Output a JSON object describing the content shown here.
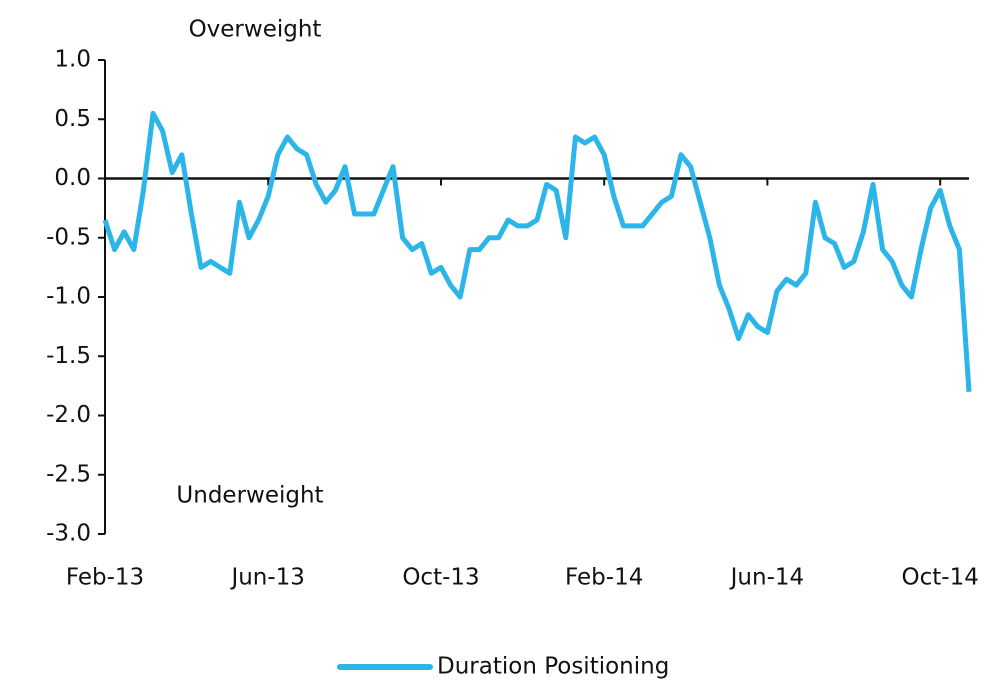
{
  "chart_data": {
    "type": "line",
    "annotations": [
      "Overweight",
      "Underweight"
    ],
    "categories": [
      "Feb-13",
      null,
      null,
      null,
      null,
      null,
      null,
      null,
      null,
      null,
      null,
      null,
      null,
      null,
      null,
      null,
      null,
      "Jun-13",
      null,
      null,
      null,
      null,
      null,
      null,
      null,
      null,
      null,
      null,
      null,
      null,
      null,
      null,
      null,
      null,
      null,
      "Oct-13",
      null,
      null,
      null,
      null,
      null,
      null,
      null,
      null,
      null,
      null,
      null,
      null,
      null,
      null,
      null,
      null,
      "Feb-14",
      null,
      null,
      null,
      null,
      null,
      null,
      null,
      null,
      null,
      null,
      null,
      null,
      null,
      null,
      null,
      null,
      "Jun-14",
      null,
      null,
      null,
      null,
      null,
      null,
      null,
      null,
      null,
      null,
      null,
      null,
      null,
      null,
      null,
      null,
      null,
      "Oct-14",
      null,
      null,
      null
    ],
    "series": [
      {
        "name": "Duration Positioning",
        "color": "#2bb5e8",
        "values": [
          -0.35,
          -0.6,
          -0.45,
          -0.6,
          -0.1,
          0.55,
          0.4,
          0.05,
          0.2,
          -0.3,
          -0.75,
          -0.7,
          -0.75,
          -0.8,
          -0.2,
          -0.5,
          -0.35,
          -0.15,
          0.2,
          0.35,
          0.25,
          0.2,
          -0.05,
          -0.2,
          -0.1,
          0.1,
          -0.3,
          -0.3,
          -0.3,
          -0.1,
          0.1,
          -0.5,
          -0.6,
          -0.55,
          -0.8,
          -0.75,
          -0.9,
          -1.0,
          -0.6,
          -0.6,
          -0.5,
          -0.5,
          -0.35,
          -0.4,
          -0.4,
          -0.35,
          -0.05,
          -0.1,
          -0.5,
          0.35,
          0.3,
          0.35,
          0.2,
          -0.15,
          -0.4,
          -0.4,
          -0.4,
          -0.3,
          -0.2,
          -0.15,
          0.2,
          0.1,
          -0.2,
          -0.5,
          -0.9,
          -1.1,
          -1.35,
          -1.15,
          -1.25,
          -1.3,
          -0.95,
          -0.85,
          -0.9,
          -0.8,
          -0.2,
          -0.5,
          -0.55,
          -0.75,
          -0.7,
          -0.45,
          -0.05,
          -0.6,
          -0.7,
          -0.9,
          -1.0,
          -0.6,
          -0.25,
          -0.1,
          -0.4,
          -0.6,
          -1.8
        ]
      }
    ],
    "ylim": [
      -3,
      1
    ],
    "yticks": [
      {
        "value": -3,
        "label": "-3.0"
      },
      -2.5,
      {
        "value": -2,
        "label": "-2.0"
      },
      -1.5,
      {
        "value": -1,
        "label": "-1.0"
      },
      -0.5,
      {
        "value": 0,
        "label": "0.0"
      },
      0.5,
      {
        "value": 1,
        "label": "1.0"
      }
    ],
    "legend": "bottom"
  }
}
